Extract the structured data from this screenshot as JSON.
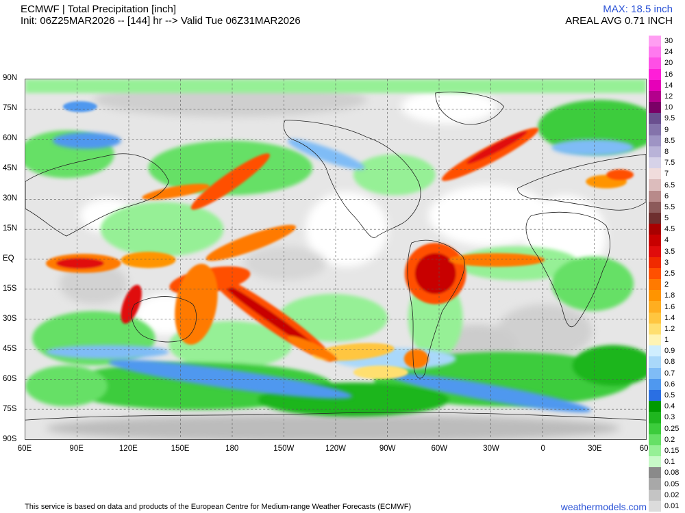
{
  "header": {
    "title": "ECMWF | Total Precipitation [inch]",
    "subtitle": "Init: 06Z25MAR2026 -- [144] hr --> Valid Tue 06Z31MAR2026",
    "max_label": "MAX: 18.5 inch",
    "areal_label": "AREAL AVG 0.71 INCH"
  },
  "axes": {
    "latitude_labels": [
      "90N",
      "75N",
      "60N",
      "45N",
      "30N",
      "15N",
      "EQ",
      "15S",
      "30S",
      "45S",
      "60S",
      "75S",
      "90S"
    ],
    "longitude_labels": [
      "60E",
      "90E",
      "120E",
      "150E",
      "180",
      "150W",
      "120W",
      "90W",
      "60W",
      "30W",
      "0",
      "30E",
      "60E"
    ]
  },
  "legend": {
    "labels": [
      "30",
      "24",
      "20",
      "16",
      "14",
      "12",
      "10",
      "9.5",
      "9",
      "8.5",
      "8",
      "7.5",
      "7",
      "6.5",
      "6",
      "5.5",
      "5",
      "4.5",
      "4",
      "3.5",
      "3",
      "2.5",
      "2",
      "1.8",
      "1.6",
      "1.4",
      "1.2",
      "1",
      "0.9",
      "0.8",
      "0.7",
      "0.6",
      "0.5",
      "0.4",
      "0.3",
      "0.25",
      "0.2",
      "0.15",
      "0.1",
      "0.08",
      "0.05",
      "0.02",
      "0.01"
    ],
    "colors": [
      "#ff9ef2",
      "#ff79ef",
      "#ff4fe6",
      "#ff1ed8",
      "#e600b8",
      "#b3008c",
      "#7a0066",
      "#6a4f8f",
      "#8473ab",
      "#9e94c4",
      "#b9b3d8",
      "#d6d2e8",
      "#f0dcdc",
      "#dcbcbc",
      "#b88a8a",
      "#8c5a5a",
      "#6e2f2f",
      "#a80000",
      "#c80000",
      "#e00c0c",
      "#f02a00",
      "#ff5000",
      "#ff7a00",
      "#ff9400",
      "#ffae20",
      "#ffc640",
      "#ffdf70",
      "#fff4b4",
      "#cfeefe",
      "#a9d8fa",
      "#7fbcf6",
      "#4f98ef",
      "#2a6fe3",
      "#009a00",
      "#1fb61f",
      "#3ccc3c",
      "#66e066",
      "#96f096",
      "#c8fac8",
      "#8a8a8a",
      "#a8a8a8",
      "#c4c4c4",
      "#dcdcdc"
    ]
  },
  "footer": {
    "attribution": "This service is based on data and products of the European Centre for Medium-range Weather Forecasts (ECMWF)",
    "site": "weathermodels.com"
  }
}
